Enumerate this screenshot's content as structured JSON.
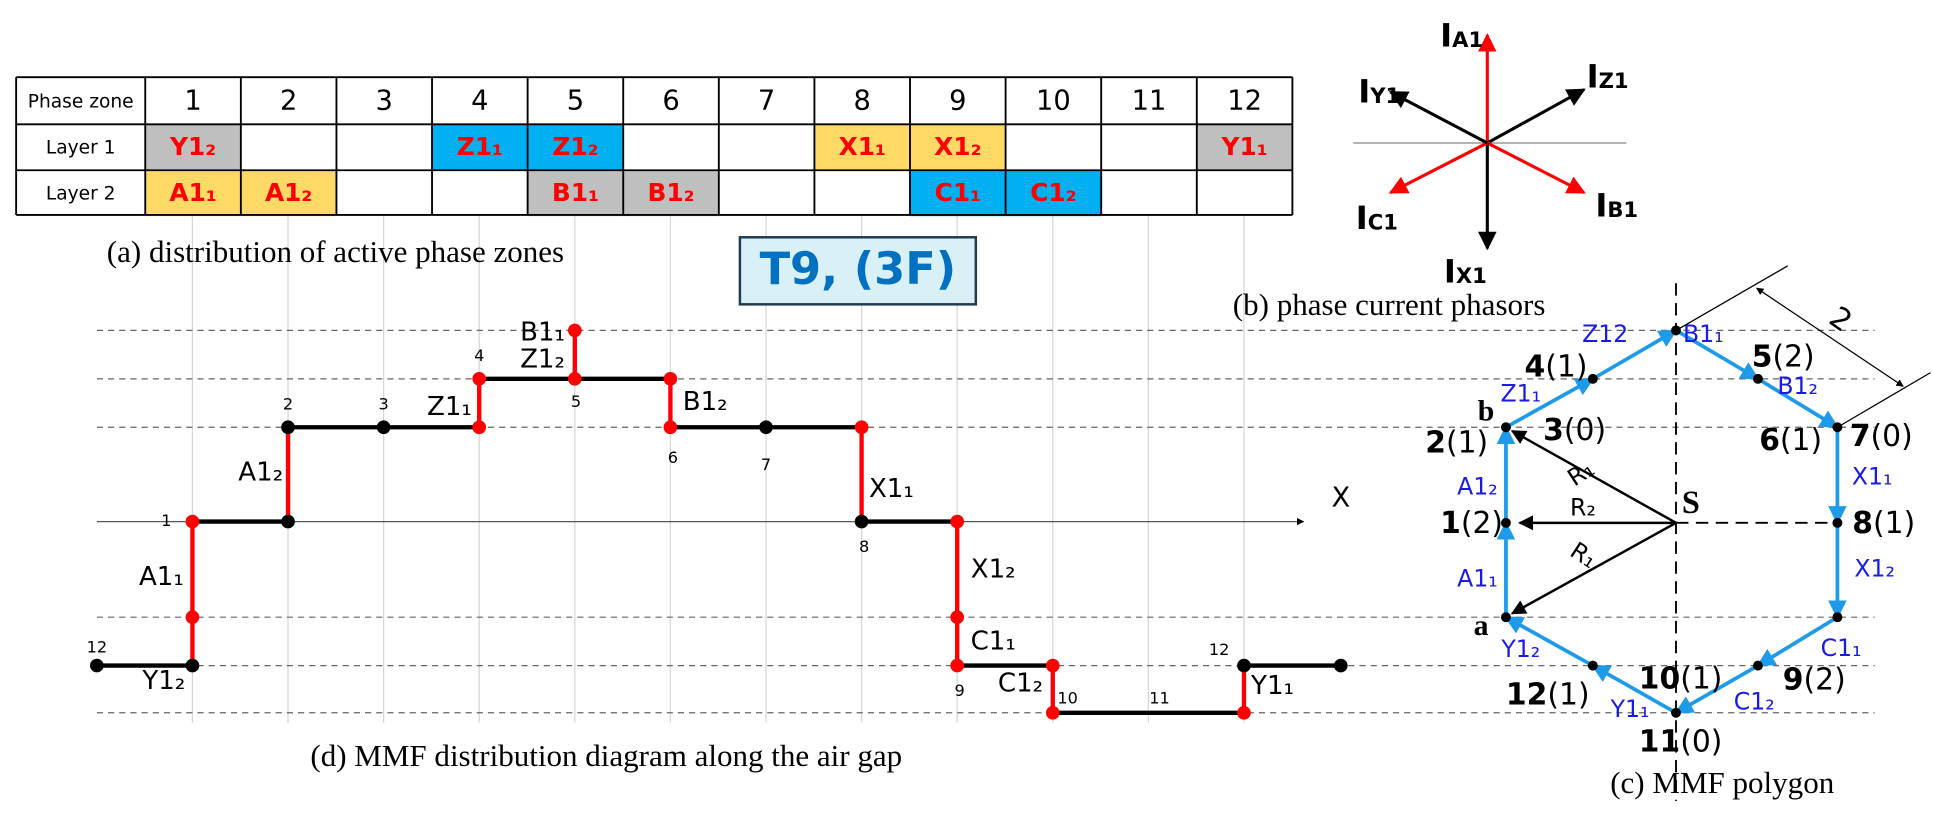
{
  "table": {
    "header": [
      "Phase zone",
      "1",
      "2",
      "3",
      "4",
      "5",
      "6",
      "7",
      "8",
      "9",
      "10",
      "11",
      "12"
    ],
    "rows": [
      {
        "label": "Layer 1",
        "cells": [
          {
            "text": "Y1₂",
            "color": "#bfbfbf"
          },
          null,
          null,
          {
            "text": "Z1₁",
            "color": "#00b0f0"
          },
          {
            "text": "Z1₂",
            "color": "#00b0f0"
          },
          null,
          null,
          {
            "text": "X1₁",
            "color": "#ffd966"
          },
          {
            "text": "X1₂",
            "color": "#ffd966"
          },
          null,
          null,
          {
            "text": "Y1₁",
            "color": "#bfbfbf"
          }
        ]
      },
      {
        "label": "Layer 2",
        "cells": [
          {
            "text": "A1₁",
            "color": "#ffd966"
          },
          {
            "text": "A1₂",
            "color": "#ffd966"
          },
          null,
          null,
          {
            "text": "B1₁",
            "color": "#bfbfbf"
          },
          {
            "text": "B1₂",
            "color": "#bfbfbf"
          },
          null,
          null,
          {
            "text": "C1₁",
            "color": "#00b0f0"
          },
          {
            "text": "C1₂",
            "color": "#00b0f0"
          },
          null,
          null
        ]
      }
    ]
  },
  "captions": {
    "a": "(a) distribution of active phase zones",
    "b": "(b) phase current phasors",
    "c": "(c) MMF polygon",
    "d": "(d) MMF distribution diagram along the air gap"
  },
  "badge": "T9, (3F)",
  "phasors": [
    {
      "main": "I",
      "sub": "A1",
      "color": "#ff0000"
    },
    {
      "main": "I",
      "sub": "Z1",
      "color": "#000000"
    },
    {
      "main": "I",
      "sub": "B1",
      "color": "#ff0000"
    },
    {
      "main": "I",
      "sub": "X1",
      "color": "#000000"
    },
    {
      "main": "I",
      "sub": "C1",
      "color": "#ff0000"
    },
    {
      "main": "I",
      "sub": "Y1",
      "color": "#000000"
    }
  ],
  "mmf": {
    "axis_label": "X",
    "point_labels": [
      "12",
      "1",
      "2",
      "3",
      "4",
      "5",
      "6",
      "7",
      "8",
      "9",
      "10",
      "11",
      "12"
    ],
    "segment_labels": [
      "Y1₂",
      "A1₁",
      "A1₂",
      "Z1₁",
      "Z1₂",
      "B1₁",
      "B1₂",
      "X1₁",
      "X1₂",
      "C1₁",
      "C1₂",
      "Y1₁"
    ]
  },
  "polygon": {
    "vertex_labels": [
      {
        "num": "4",
        "count": "(1)"
      },
      {
        "num": "5",
        "count": "(2)"
      },
      {
        "num": "2",
        "count": "(1)"
      },
      {
        "num": "3",
        "count": "(0)"
      },
      {
        "num": "6",
        "count": "(1)"
      },
      {
        "num": "7",
        "count": "(0)"
      },
      {
        "num": "1",
        "count": "(2)"
      },
      {
        "num": "8",
        "count": "(1)"
      },
      {
        "num": "10",
        "count": "(1)"
      },
      {
        "num": "9",
        "count": "(2)"
      },
      {
        "num": "12",
        "count": "(1)"
      },
      {
        "num": "11",
        "count": "(0)"
      }
    ],
    "edge_labels": [
      "A1₁",
      "A1₂",
      "Z1₁",
      "Z12",
      "B1₁",
      "B1₂",
      "X1₁",
      "X1₂",
      "C1₁",
      "C1₂",
      "Y1₁",
      "Y1₂"
    ],
    "letters": [
      "b",
      "a",
      "S"
    ],
    "radius_labels": [
      "R₁",
      "R₂",
      "R₁"
    ],
    "dimension": "2"
  }
}
